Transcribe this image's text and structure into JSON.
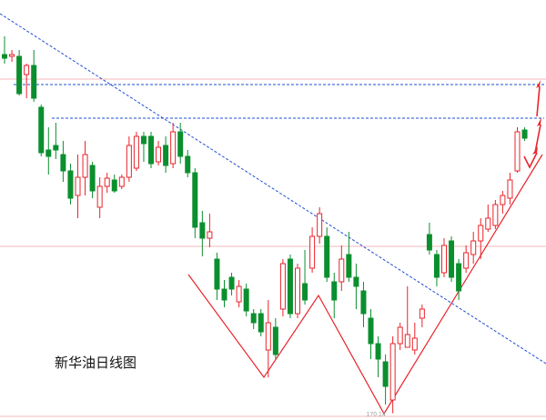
{
  "chart_data": {
    "type": "candlestick",
    "title": "新华油日线图",
    "ylim": [
      169.4,
      215.6
    ],
    "up_color": "#e8242b",
    "down_color": "#0b8f2e",
    "open": [
      209.6,
      209.4,
      209.4,
      207.4,
      208.4,
      203.8,
      199.1,
      199.6,
      198.6,
      196.8,
      194.1,
      196.1,
      197.4,
      192.8,
      195.1,
      195.8,
      195.1,
      196.1,
      197.1,
      200.6,
      200.6,
      197.8,
      199.6,
      197.6,
      201.1,
      198.4,
      196.6,
      191.1,
      189.4,
      187.1,
      183.8,
      185.1,
      182.4,
      183.8,
      181.1,
      181.1,
      177.1,
      179.6,
      181.6,
      187.1,
      181.1,
      184.4,
      186.1,
      189.6,
      189.6,
      184.6,
      184.6,
      187.6,
      185.1,
      183.6,
      180.6,
      177.8,
      175.8,
      171.6,
      177.8,
      177.4,
      177.1,
      180.6,
      189.8,
      187.6,
      185.6,
      189.1,
      186.6,
      186.1,
      187.6,
      189.1,
      190.4,
      190.8,
      193.1,
      193.8,
      196.8,
      201.3
    ],
    "high": [
      211.6,
      210.1,
      210.1,
      208.6,
      210.1,
      204.1,
      201.6,
      202.1,
      200.1,
      197.6,
      198.6,
      200.1,
      197.8,
      196.1,
      196.6,
      196.4,
      196.4,
      200.6,
      201.1,
      201.1,
      201.1,
      200.1,
      200.6,
      202.1,
      202.1,
      199.1,
      197.1,
      192.4,
      192.1,
      187.8,
      184.8,
      185.6,
      184.8,
      184.4,
      181.6,
      181.6,
      182.6,
      180.6,
      187.1,
      187.6,
      186.6,
      188.1,
      190.6,
      192.8,
      190.6,
      185.6,
      188.6,
      190.1,
      186.6,
      184.6,
      181.6,
      178.6,
      176.6,
      178.6,
      180.1,
      184.1,
      180.1,
      182.1,
      191.1,
      188.1,
      189.4,
      189.6,
      187.1,
      188.6,
      190.1,
      191.6,
      193.1,
      193.6,
      194.6,
      196.6,
      201.6,
      201.6
    ],
    "low": [
      208.6,
      208.8,
      205.1,
      204.8,
      204.4,
      198.4,
      196.4,
      198.1,
      195.6,
      193.1,
      191.6,
      194.1,
      193.8,
      191.6,
      194.4,
      194.4,
      194.8,
      195.6,
      196.8,
      197.8,
      197.1,
      197.4,
      196.6,
      197.1,
      197.6,
      196.1,
      189.4,
      187.4,
      188.4,
      182.6,
      181.8,
      183.1,
      181.8,
      180.8,
      179.4,
      178.6,
      174.1,
      176.1,
      180.8,
      180.6,
      180.6,
      182.1,
      185.6,
      188.8,
      184.6,
      180.6,
      183.6,
      184.6,
      181.6,
      179.6,
      176.1,
      174.1,
      171.1,
      170.14,
      177.1,
      177.4,
      176.6,
      179.6,
      187.6,
      184.1,
      185.1,
      184.6,
      182.6,
      185.6,
      186.6,
      187.1,
      190.1,
      190.4,
      192.1,
      193.1,
      196.6,
      200.1
    ],
    "close": [
      209.2,
      209.6,
      205.3,
      208.4,
      204.8,
      198.8,
      198.4,
      199.1,
      196.8,
      193.8,
      196.1,
      198.6,
      194.6,
      195.1,
      196.0,
      194.6,
      196.1,
      199.6,
      200.6,
      199.8,
      197.6,
      199.4,
      197.4,
      201.1,
      198.4,
      196.6,
      190.6,
      189.4,
      190.1,
      183.8,
      182.6,
      183.8,
      184.1,
      181.4,
      180.1,
      179.1,
      180.1,
      176.6,
      186.6,
      181.1,
      186.1,
      182.6,
      189.6,
      192.1,
      185.1,
      182.6,
      187.1,
      185.1,
      184.1,
      181.1,
      177.8,
      176.1,
      173.1,
      177.8,
      179.6,
      178.8,
      178.4,
      181.6,
      188.1,
      185.1,
      188.6,
      185.1,
      183.6,
      187.8,
      189.1,
      190.8,
      191.6,
      193.1,
      194.1,
      195.8,
      201.1,
      200.4
    ]
  }
}
